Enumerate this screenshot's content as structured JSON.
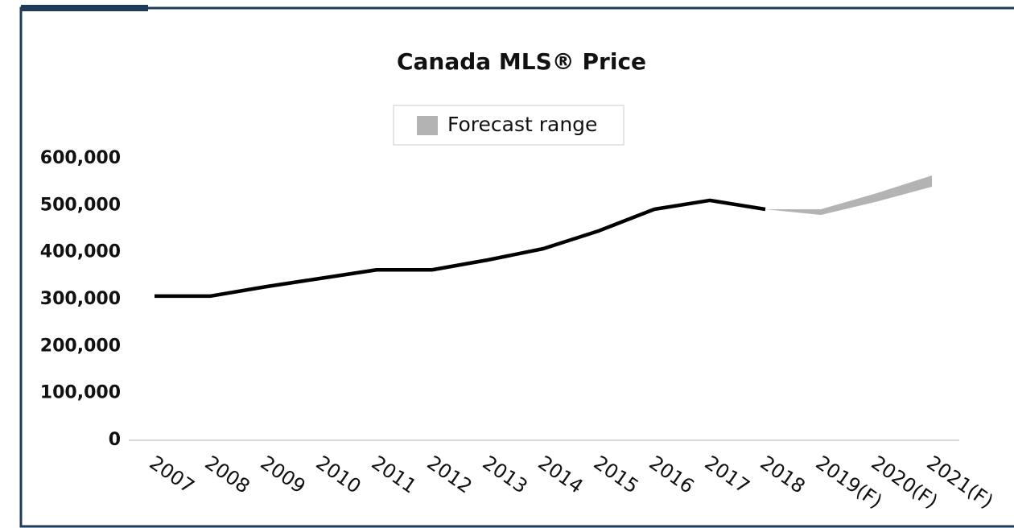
{
  "chart_data": {
    "type": "line",
    "title": "Canada MLS® Price",
    "categories": [
      "2007",
      "2008",
      "2009",
      "2010",
      "2011",
      "2012",
      "2013",
      "2014",
      "2015",
      "2016",
      "2017",
      "2018",
      "2019(F)",
      "2020(F)",
      "2021(F)"
    ],
    "values": [
      307000,
      307000,
      327000,
      345000,
      363000,
      363000,
      384000,
      408000,
      446000,
      492000,
      511000,
      492000,
      null,
      null,
      null
    ],
    "color": "#000000",
    "forecast_range": {
      "name": "Forecast range",
      "color": "#b3b3b3",
      "low": [
        null,
        null,
        null,
        null,
        null,
        null,
        null,
        null,
        null,
        null,
        null,
        492000,
        480000,
        508000,
        540000
      ],
      "high": [
        null,
        null,
        null,
        null,
        null,
        null,
        null,
        null,
        null,
        null,
        null,
        492000,
        492000,
        526000,
        564000
      ]
    },
    "ylim": [
      0,
      600000
    ],
    "yticks": [
      0,
      {
        "value": 100000,
        "label": "100,000"
      },
      {
        "value": 200000,
        "label": "200,000"
      },
      {
        "value": 300000,
        "label": "300,000"
      },
      {
        "value": 400000,
        "label": "400,000"
      },
      {
        "value": 500000,
        "label": "500,000"
      },
      {
        "value": 600000,
        "label": "600,000"
      }
    ],
    "legend": "top"
  }
}
